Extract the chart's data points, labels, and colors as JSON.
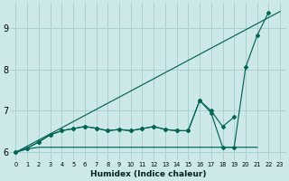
{
  "xlabel": "Humidex (Indice chaleur)",
  "bg_color": "#cce8e8",
  "grid_color": "#aad0d0",
  "line_color": "#006655",
  "xlim": [
    -0.5,
    23.5
  ],
  "ylim": [
    5.8,
    9.6
  ],
  "x": [
    0,
    1,
    2,
    3,
    4,
    5,
    6,
    7,
    8,
    9,
    10,
    11,
    12,
    13,
    14,
    15,
    16,
    17,
    18,
    19,
    20,
    21,
    22,
    23
  ],
  "diag_line": [
    [
      0,
      6.0
    ],
    [
      23,
      9.4
    ]
  ],
  "line_markers": [
    6.0,
    6.1,
    6.25,
    6.42,
    6.52,
    6.57,
    6.62,
    6.58,
    6.52,
    6.55,
    6.52,
    6.57,
    6.62,
    6.55,
    6.52,
    6.52,
    7.25,
    7.0,
    6.62,
    6.85,
    null,
    null,
    null,
    null
  ],
  "line_spike": [
    6.0,
    6.1,
    6.25,
    6.42,
    6.52,
    6.57,
    6.62,
    6.58,
    6.52,
    6.55,
    6.52,
    6.57,
    6.62,
    6.55,
    6.52,
    6.52,
    7.25,
    6.95,
    6.12,
    6.12,
    8.05,
    8.82,
    9.38,
    null
  ],
  "line_flat": [
    6.0,
    6.08,
    6.12,
    6.12,
    6.12,
    6.12,
    6.12,
    6.12,
    6.12,
    6.12,
    6.12,
    6.12,
    6.12,
    6.12,
    6.12,
    6.12,
    6.12,
    6.12,
    6.12,
    6.12,
    6.12,
    6.12,
    null,
    null
  ],
  "yticks": [
    6,
    7,
    8,
    9
  ],
  "xtick_labels": [
    "0",
    "1",
    "2",
    "3",
    "4",
    "5",
    "6",
    "7",
    "8",
    "9",
    "10",
    "11",
    "12",
    "13",
    "14",
    "15",
    "16",
    "17",
    "18",
    "19",
    "20",
    "21",
    "22",
    "23"
  ]
}
